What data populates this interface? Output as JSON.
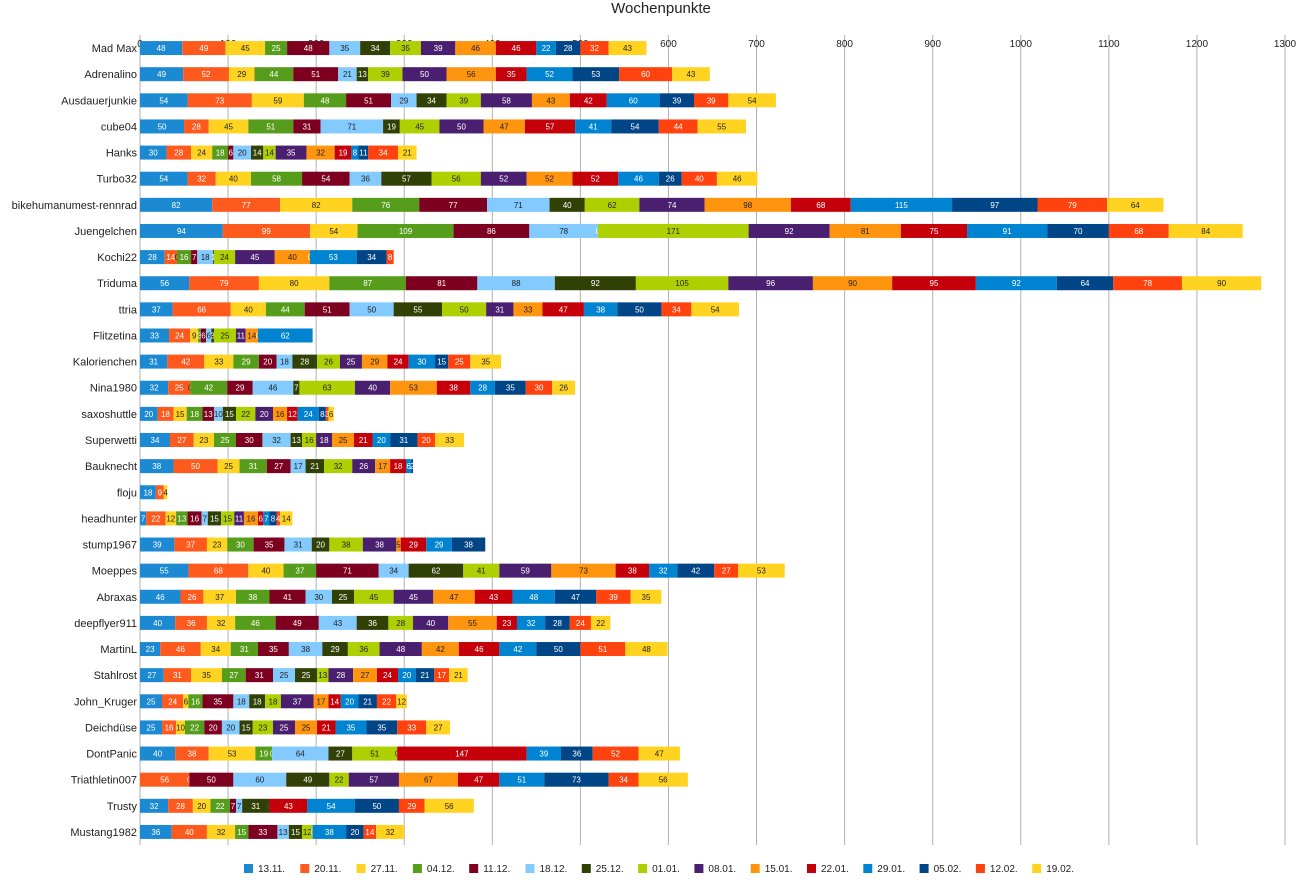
{
  "chart_data": {
    "type": "bar",
    "orientation": "horizontal",
    "stacked": true,
    "title": "Wochenpunkte",
    "xlim": [
      0,
      1300
    ],
    "xticks": [
      0,
      100,
      200,
      300,
      400,
      500,
      600,
      700,
      800,
      900,
      1000,
      1100,
      1200,
      1300
    ],
    "grid": true,
    "legend_position": "bottom",
    "series_names": [
      "13.11.",
      "20.11.",
      "27.11.",
      "04.12.",
      "11.12.",
      "18.12.",
      "25.12.",
      "01.01.",
      "08.01.",
      "15.01.",
      "22.01.",
      "29.01.",
      "05.02.",
      "12.02.",
      "19.02."
    ],
    "colors": [
      "#1c8ad2",
      "#ff5a1e",
      "#ffd320",
      "#579d1c",
      "#7e0021",
      "#83caff",
      "#314004",
      "#aecf00",
      "#4b1f6f",
      "#ff950e",
      "#c5000b",
      "#0084d1",
      "#004586",
      "#ff420e",
      "#ffd320"
    ],
    "categories": [
      "Mad Max",
      "Adrenalino",
      "Ausdauerjunkie",
      "cube04",
      "Hanks",
      "Turbo32",
      "bikehumanumest-rennrad",
      "Juengelchen",
      "Kochi22",
      "Triduma",
      "ttria",
      "Flitzetina",
      "Kalorienchen",
      "Nina1980",
      "saxoshuttle",
      "Superwetti",
      "Bauknecht",
      "floju",
      "headhunter",
      "stump1967",
      "Moeppes",
      "Abraxas",
      "deepflyer911",
      "MartinL",
      "Stahlrost",
      "John_Kruger",
      "Deichdüse",
      "DontPanic",
      "Triathletin007",
      "Trusty",
      "Mustang1982"
    ],
    "values": [
      [
        48,
        49,
        45,
        25,
        48,
        35,
        34,
        35,
        39,
        46,
        46,
        22,
        28,
        32,
        43
      ],
      [
        49,
        52,
        29,
        44,
        51,
        21,
        13,
        39,
        50,
        56,
        35,
        52,
        53,
        60,
        43
      ],
      [
        54,
        73,
        59,
        48,
        51,
        29,
        34,
        39,
        58,
        43,
        42,
        60,
        39,
        39,
        54
      ],
      [
        50,
        28,
        45,
        51,
        31,
        71,
        19,
        45,
        50,
        47,
        57,
        41,
        54,
        44,
        55
      ],
      [
        30,
        28,
        24,
        18,
        6,
        20,
        14,
        14,
        35,
        32,
        19,
        8,
        11,
        34,
        21
      ],
      [
        54,
        32,
        40,
        58,
        54,
        36,
        57,
        56,
        52,
        52,
        52,
        46,
        26,
        40,
        46
      ],
      [
        82,
        77,
        82,
        76,
        77,
        71,
        40,
        62,
        74,
        98,
        68,
        115,
        97,
        79,
        64
      ],
      [
        94,
        99,
        54,
        109,
        86,
        78,
        0,
        171,
        92,
        81,
        75,
        91,
        70,
        68,
        84
      ],
      [
        28,
        14,
        0,
        16,
        7,
        18,
        1,
        24,
        45,
        40,
        0,
        53,
        34,
        8,
        0
      ],
      [
        56,
        79,
        80,
        87,
        81,
        88,
        92,
        105,
        96,
        90,
        95,
        92,
        64,
        78,
        90
      ],
      [
        37,
        66,
        40,
        44,
        51,
        50,
        55,
        50,
        31,
        33,
        47,
        38,
        50,
        34,
        54
      ],
      [
        33,
        24,
        9,
        3,
        6,
        6,
        3,
        25,
        11,
        14,
        0,
        62,
        0,
        0,
        0
      ],
      [
        31,
        42,
        33,
        29,
        20,
        18,
        28,
        26,
        25,
        29,
        24,
        30,
        15,
        25,
        35
      ],
      [
        32,
        25,
        0,
        42,
        29,
        46,
        7,
        63,
        40,
        53,
        38,
        28,
        35,
        30,
        26
      ],
      [
        20,
        18,
        15,
        18,
        13,
        10,
        15,
        22,
        20,
        16,
        12,
        24,
        8,
        3,
        6
      ],
      [
        34,
        27,
        23,
        25,
        30,
        32,
        13,
        16,
        18,
        25,
        21,
        20,
        31,
        20,
        33
      ],
      [
        38,
        50,
        25,
        31,
        27,
        17,
        21,
        32,
        26,
        17,
        18,
        6,
        2,
        0,
        0
      ],
      [
        18,
        9,
        4,
        0,
        0,
        0,
        0,
        0,
        0,
        0,
        0,
        0,
        0,
        0,
        0
      ],
      [
        7,
        22,
        12,
        13,
        16,
        7,
        15,
        15,
        11,
        16,
        6,
        7,
        8,
        4,
        14
      ],
      [
        39,
        37,
        23,
        30,
        35,
        31,
        20,
        38,
        38,
        5,
        29,
        29,
        38,
        0,
        0
      ],
      [
        55,
        68,
        40,
        37,
        71,
        34,
        62,
        41,
        59,
        73,
        38,
        32,
        42,
        27,
        53
      ],
      [
        46,
        26,
        37,
        38,
        41,
        30,
        25,
        45,
        45,
        47,
        43,
        48,
        47,
        39,
        35
      ],
      [
        40,
        36,
        32,
        46,
        49,
        43,
        36,
        28,
        40,
        55,
        23,
        32,
        28,
        24,
        22
      ],
      [
        23,
        46,
        34,
        31,
        35,
        38,
        29,
        36,
        48,
        42,
        46,
        42,
        50,
        51,
        48
      ],
      [
        27,
        31,
        35,
        27,
        31,
        25,
        25,
        13,
        28,
        27,
        24,
        20,
        21,
        17,
        21
      ],
      [
        25,
        24,
        6,
        16,
        35,
        18,
        18,
        18,
        37,
        17,
        14,
        20,
        21,
        22,
        12
      ],
      [
        25,
        16,
        10,
        22,
        20,
        20,
        15,
        23,
        25,
        25,
        21,
        35,
        35,
        33,
        27
      ],
      [
        40,
        38,
        53,
        19,
        0,
        64,
        27,
        51,
        0,
        0,
        147,
        39,
        36,
        52,
        47
      ],
      [
        0,
        56,
        0,
        0,
        50,
        60,
        49,
        22,
        57,
        67,
        47,
        51,
        73,
        34,
        56
      ],
      [
        32,
        28,
        20,
        22,
        7,
        7,
        31,
        0,
        0,
        0,
        43,
        54,
        50,
        29,
        56
      ],
      [
        36,
        40,
        32,
        15,
        33,
        13,
        15,
        12,
        0,
        0,
        0,
        38,
        20,
        14,
        32
      ]
    ]
  }
}
